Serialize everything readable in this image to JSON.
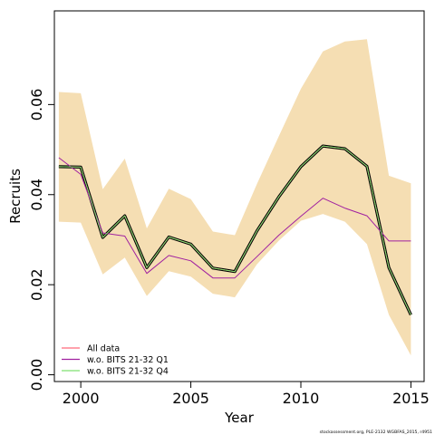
{
  "chart_data": {
    "type": "line",
    "xlabel": "Year",
    "ylabel": "Recruits",
    "xlim": [
      1998.8,
      2015.6
    ],
    "ylim": [
      -0.0015,
      0.0808
    ],
    "x_ticks": [
      2000,
      2005,
      2010,
      2015
    ],
    "x_tick_labels": [
      "2000",
      "2005",
      "2010",
      "2015"
    ],
    "y_ticks": [
      0.0,
      0.02,
      0.04,
      0.06
    ],
    "y_tick_labels": [
      "0.00",
      "0.02",
      "0.04",
      "0.06"
    ],
    "grid": false,
    "legend_position": "bottom-left",
    "x": [
      1999,
      2000,
      2001,
      2002,
      2003,
      2004,
      2005,
      2006,
      2007,
      2008,
      2009,
      2010,
      2011,
      2012,
      2013,
      2014,
      2015
    ],
    "band": {
      "color": "#f5deb3",
      "lower": [
        0.034,
        0.0338,
        0.0223,
        0.026,
        0.0175,
        0.023,
        0.0218,
        0.018,
        0.0172,
        0.0245,
        0.0298,
        0.0342,
        0.0357,
        0.034,
        0.029,
        0.0133,
        0.0043
      ],
      "upper": [
        0.0628,
        0.0625,
        0.0412,
        0.048,
        0.0325,
        0.0413,
        0.039,
        0.0318,
        0.031,
        0.0423,
        0.053,
        0.0635,
        0.0718,
        0.074,
        0.0745,
        0.0442,
        0.0425
      ]
    },
    "series": [
      {
        "name": "All data",
        "color": "#ff6b7a",
        "values": [
          0.0462,
          0.0461,
          0.0305,
          0.0353,
          0.0238,
          0.0306,
          0.029,
          0.0237,
          0.0229,
          0.0319,
          0.0395,
          0.0462,
          0.0508,
          0.0502,
          0.0463,
          0.0238,
          0.0133
        ]
      },
      {
        "name": "w.o. BITS 21-32 Q1",
        "color": "#a020a0",
        "values": [
          0.0482,
          0.0445,
          0.0315,
          0.0308,
          0.0225,
          0.0265,
          0.0253,
          0.0215,
          0.0215,
          0.0262,
          0.031,
          0.0352,
          0.0392,
          0.037,
          0.0353,
          0.0297,
          0.0297
        ]
      },
      {
        "name": "w.o. BITS 21-32 Q4",
        "color": "#7fe070",
        "values": [
          0.0462,
          0.0461,
          0.0305,
          0.0353,
          0.0238,
          0.0306,
          0.029,
          0.0237,
          0.0229,
          0.0319,
          0.0395,
          0.0462,
          0.0508,
          0.0502,
          0.0463,
          0.0238,
          0.0133
        ]
      }
    ],
    "central_line": {
      "color": "#000000",
      "values": [
        0.0462,
        0.0461,
        0.0305,
        0.0353,
        0.0238,
        0.0306,
        0.029,
        0.0237,
        0.0229,
        0.0319,
        0.0395,
        0.0462,
        0.0508,
        0.0502,
        0.0463,
        0.0238,
        0.0133
      ]
    }
  },
  "credit": "stockassessment.org, PLE-2132 WGBFAS_2015, r4951"
}
